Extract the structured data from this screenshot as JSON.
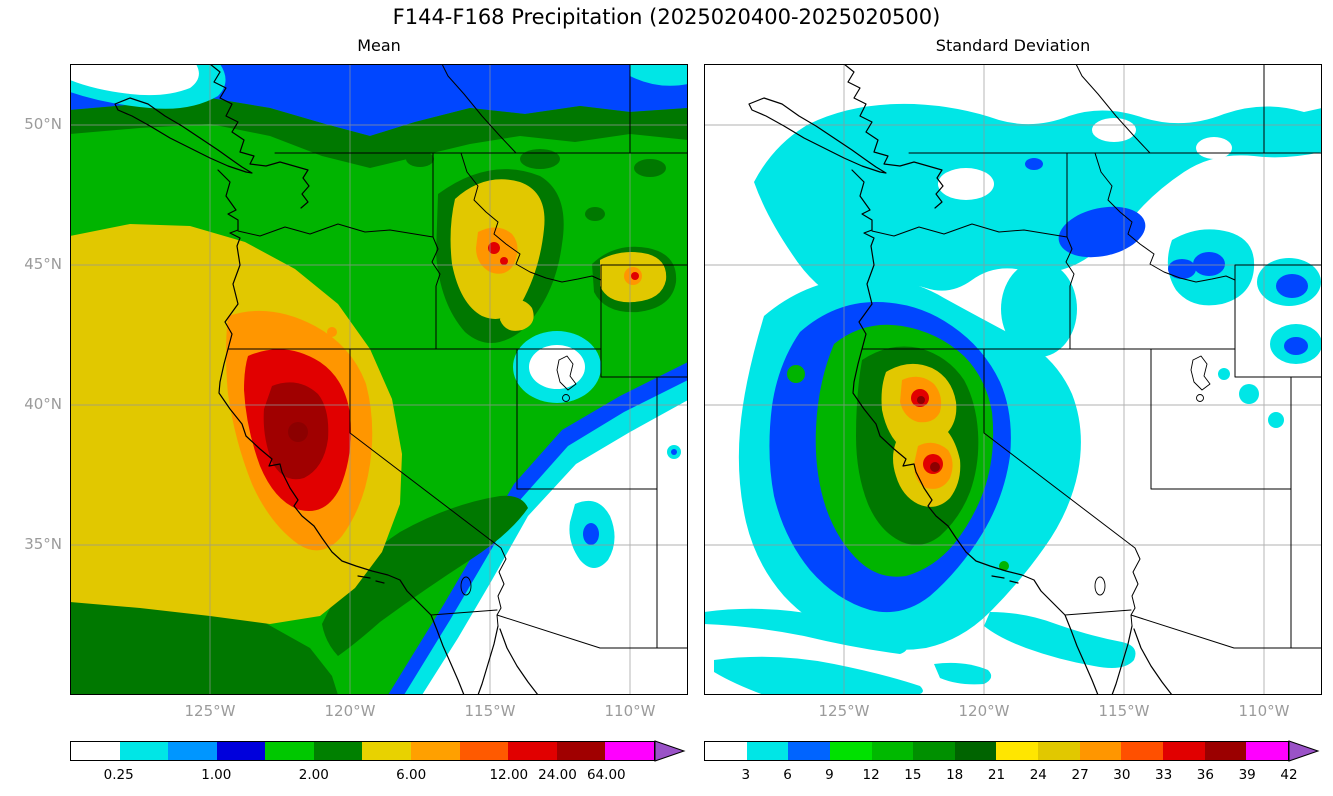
{
  "title": "F144-F168 Precipitation (2025020400-2025020500)",
  "panels": {
    "left": {
      "title": "Mean"
    },
    "right": {
      "title": "Standard Deviation"
    }
  },
  "axis": {
    "lat_labels": [
      "50°N",
      "45°N",
      "40°N",
      "35°N"
    ],
    "lon_labels": [
      "125°W",
      "120°W",
      "115°W",
      "110°W"
    ]
  },
  "colorbar_left": {
    "labels": [
      "0.25",
      "1.00",
      "2.00",
      "6.00",
      "12.00",
      "24.00",
      "64.00"
    ],
    "colors": [
      "#ffffff",
      "#00e6e6",
      "#0096ff",
      "#0000dc",
      "#00c800",
      "#008000",
      "#e8d200",
      "#ffa000",
      "#ff5a00",
      "#e10000",
      "#a00000",
      "#ff00ff"
    ],
    "arrow_color": "#9a52c7"
  },
  "colorbar_right": {
    "labels": [
      "3",
      "6",
      "9",
      "12",
      "15",
      "18",
      "21",
      "24",
      "27",
      "30",
      "33",
      "36",
      "39",
      "42"
    ],
    "colors": [
      "#ffffff",
      "#00e6e6",
      "#0064ff",
      "#00e100",
      "#00b900",
      "#009000",
      "#006400",
      "#ffe600",
      "#e1c800",
      "#ff9600",
      "#ff5000",
      "#e10000",
      "#9b0000",
      "#ff00ff"
    ],
    "arrow_color": "#9a52c7"
  },
  "chart_data": {
    "type": "heatmap",
    "subtype": "filled-contour precipitation maps (2-panel)",
    "title": "F144-F168 Precipitation (2025020400-2025020500)",
    "x_axis": {
      "tick_labels": [
        "125°W",
        "120°W",
        "115°W",
        "110°W"
      ]
    },
    "y_axis": {
      "tick_labels": [
        "50°N",
        "45°N",
        "40°N",
        "35°N"
      ]
    },
    "map_extent": {
      "lon_approx": [
        -130,
        -108
      ],
      "lat_approx": [
        29.5,
        52.2
      ]
    },
    "grid": true,
    "panels": [
      {
        "title": "Mean",
        "colorbar_ticks": [
          0.25,
          1.0,
          2.0,
          6.0,
          12.0,
          24.0,
          64.0
        ],
        "colorbar_extend": "max",
        "pattern": [
          {
            "region": "Northern California coast and Sierra",
            "value": "24-64+ (red/dark red maximum)"
          },
          {
            "region": "SW offshore Pacific / CA-NV",
            "value": "6-24 (yellow-orange)"
          },
          {
            "region": "Central Idaho mountains",
            "value": "6-24 (yellow with red spots)"
          },
          {
            "region": "NW Wyoming / Absaroka",
            "value": "6-12 (yellow, small red spot)"
          },
          {
            "region": "Pacific Northwest / N Rockies / Canada",
            "value": "1-6 (greens, blue band north)"
          },
          {
            "region": "Desert Southwest (SE corner)",
            "value": "< 0.25 (white)"
          }
        ]
      },
      {
        "title": "Standard Deviation",
        "colorbar_ticks": [
          3,
          6,
          9,
          12,
          15,
          18,
          21,
          24,
          27,
          30,
          33,
          36,
          39,
          42
        ],
        "colorbar_extend": "max",
        "pattern": [
          {
            "region": "Northern California / NW Nevada core",
            "value": "24-42 (yellow-orange-red spots)"
          },
          {
            "region": "Ring around core and N CA coast",
            "value": "9-21 (blue/green)"
          },
          {
            "region": "Pacific NW, N Rockies, offshore",
            "value": "3-9 (cyan, blue patches)"
          },
          {
            "region": "Great Basin / SE quadrant",
            "value": "< 3 (white)"
          }
        ]
      }
    ]
  }
}
